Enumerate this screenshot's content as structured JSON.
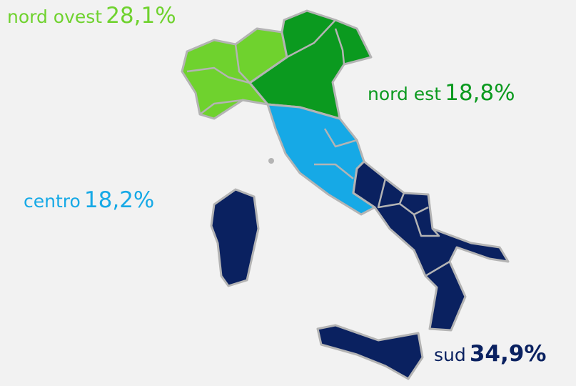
{
  "regions": [
    {
      "name": "nord ovest",
      "share": "28,1%",
      "color": "#6fd22e"
    },
    {
      "name": "nord est",
      "share": "18,8%",
      "color": "#0b9a1f"
    },
    {
      "name": "centro",
      "share": "18,2%",
      "color": "#16a9e6"
    },
    {
      "name": "sud",
      "share": "34,9%",
      "color": "#0a2160"
    }
  ]
}
